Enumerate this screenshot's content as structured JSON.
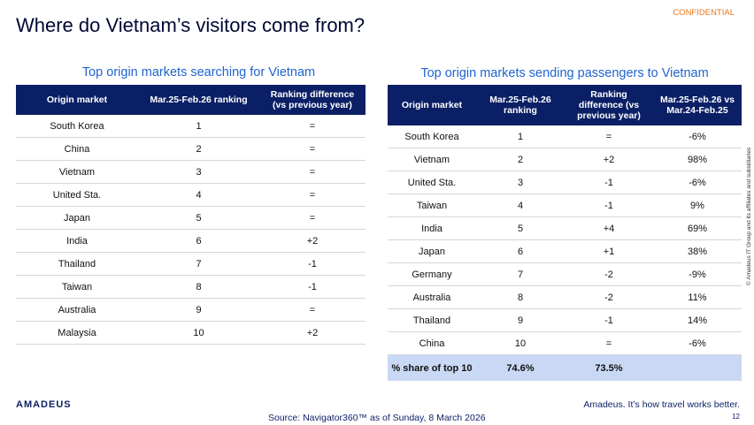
{
  "confidential": "CONFIDENTIAL",
  "title": "Where do Vietnam’s visitors come from?",
  "table_left": {
    "title": "Top origin markets searching for Vietnam",
    "headers": [
      "Origin market",
      "Mar.25-Feb.26 ranking",
      "Ranking difference (vs previous year)"
    ],
    "rows": [
      [
        "South Korea",
        "1",
        "="
      ],
      [
        "China",
        "2",
        "="
      ],
      [
        "Vietnam",
        "3",
        "="
      ],
      [
        "United Sta.",
        "4",
        "="
      ],
      [
        "Japan",
        "5",
        "="
      ],
      [
        "India",
        "6",
        "+2"
      ],
      [
        "Thailand",
        "7",
        "-1"
      ],
      [
        "Taiwan",
        "8",
        "-1"
      ],
      [
        "Australia",
        "9",
        "="
      ],
      [
        "Malaysia",
        "10",
        "+2"
      ]
    ]
  },
  "table_right": {
    "title": "Top origin markets sending passengers to Vietnam",
    "headers": [
      "Origin market",
      "Mar.25-Feb.26 ranking",
      "Ranking difference (vs previous year)",
      "Mar.25-Feb.26 vs Mar.24-Feb.25"
    ],
    "rows": [
      [
        "South Korea",
        "1",
        "=",
        "-6%"
      ],
      [
        "Vietnam",
        "2",
        "+2",
        "98%"
      ],
      [
        "United Sta.",
        "3",
        "-1",
        "-6%"
      ],
      [
        "Taiwan",
        "4",
        "-1",
        "9%"
      ],
      [
        "India",
        "5",
        "+4",
        "69%"
      ],
      [
        "Japan",
        "6",
        "+1",
        "38%"
      ],
      [
        "Germany",
        "7",
        "-2",
        "-9%"
      ],
      [
        "Australia",
        "8",
        "-2",
        "11%"
      ],
      [
        "Thailand",
        "9",
        "-1",
        "14%"
      ],
      [
        "China",
        "10",
        "=",
        "-6%"
      ]
    ],
    "footer": [
      "% share of top 10",
      "74.6%",
      "73.5%"
    ]
  },
  "copyright": "© Amadeus IT Group and its affiliates and subsidiaries",
  "logo": "amadeus",
  "source": "Source: Navigator360™ as of Sunday, 8 March 2026",
  "tagline": "Amadeus. It’s how travel works better.",
  "page_number": "12"
}
